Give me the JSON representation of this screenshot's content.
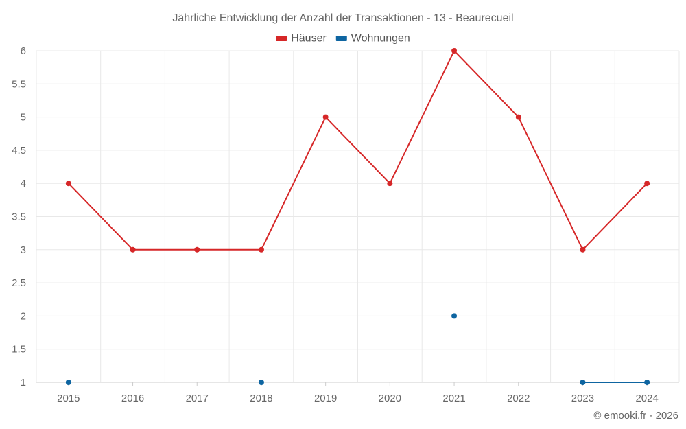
{
  "chart_data": {
    "type": "line",
    "title": "Jährliche Entwicklung der Anzahl der Transaktionen - 13 - Beaurecueil",
    "categories": [
      "2015",
      "2016",
      "2017",
      "2018",
      "2019",
      "2020",
      "2021",
      "2022",
      "2023",
      "2024"
    ],
    "ylim": [
      1,
      6
    ],
    "yticks": [
      "1",
      "1.5",
      "2",
      "2.5",
      "3",
      "3.5",
      "4",
      "4.5",
      "5",
      "5.5",
      "6"
    ],
    "ytick_values": [
      1,
      1.5,
      2,
      2.5,
      3,
      3.5,
      4,
      4.5,
      5,
      5.5,
      6
    ],
    "grid": true,
    "legend_position": "top-center",
    "series": [
      {
        "name": "Häuser",
        "color": "#d62728",
        "values": [
          4,
          3,
          3,
          3,
          5,
          4,
          6,
          5,
          3,
          4
        ]
      },
      {
        "name": "Wohnungen",
        "color": "#0e65a1",
        "values": [
          1,
          null,
          null,
          1,
          null,
          null,
          2,
          null,
          1,
          1
        ]
      }
    ]
  },
  "credit": "© emooki.fr - 2026"
}
